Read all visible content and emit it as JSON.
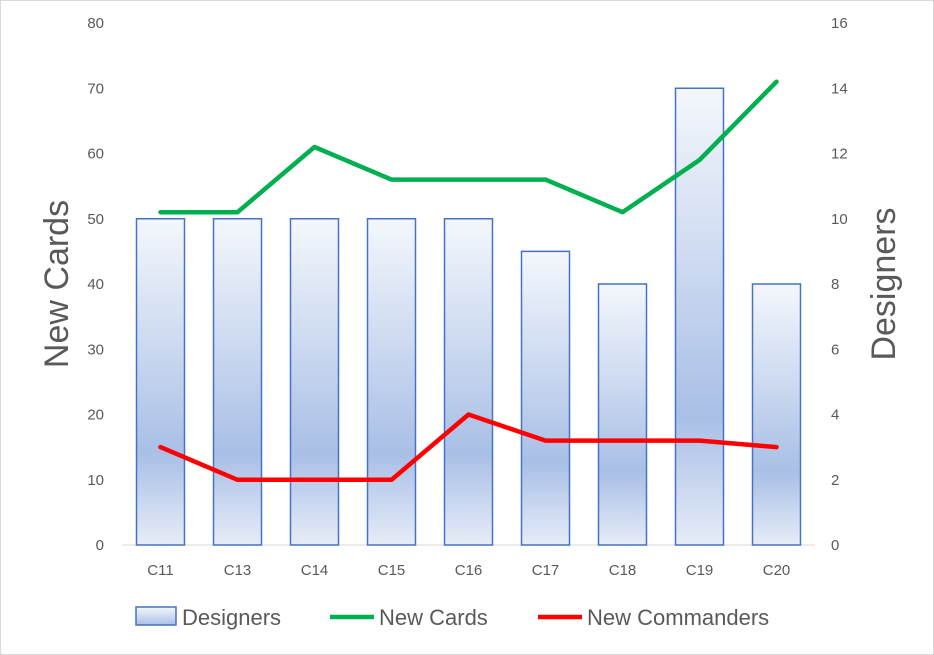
{
  "chart_data": {
    "type": "bar",
    "categories": [
      "C11",
      "C13",
      "C14",
      "C15",
      "C16",
      "C17",
      "C18",
      "C19",
      "C20"
    ],
    "series": [
      {
        "name": "Designers",
        "type": "bar",
        "axis": "right",
        "values": [
          10,
          10,
          10,
          10,
          10,
          9,
          8,
          14,
          8
        ],
        "color": "#4472c4"
      },
      {
        "name": "New Cards",
        "type": "line",
        "axis": "left",
        "values": [
          51,
          51,
          61,
          56,
          56,
          56,
          51,
          59,
          71
        ],
        "color": "#00b050"
      },
      {
        "name": "New Commanders",
        "type": "line",
        "axis": "left",
        "values": [
          15,
          10,
          10,
          10,
          20,
          16,
          16,
          16,
          15
        ],
        "color": "#ff0000"
      }
    ],
    "ylabel": "New Cards",
    "y2label": "Designers",
    "ylim": [
      0,
      80
    ],
    "y2lim": [
      0,
      16
    ],
    "yticks": [
      "0",
      "10",
      "20",
      "30",
      "40",
      "50",
      "60",
      "70",
      "80"
    ],
    "y2ticks": [
      "0",
      "2",
      "4",
      "6",
      "8",
      "10",
      "12",
      "14",
      "16"
    ],
    "grid": false,
    "legend": "bottom"
  }
}
